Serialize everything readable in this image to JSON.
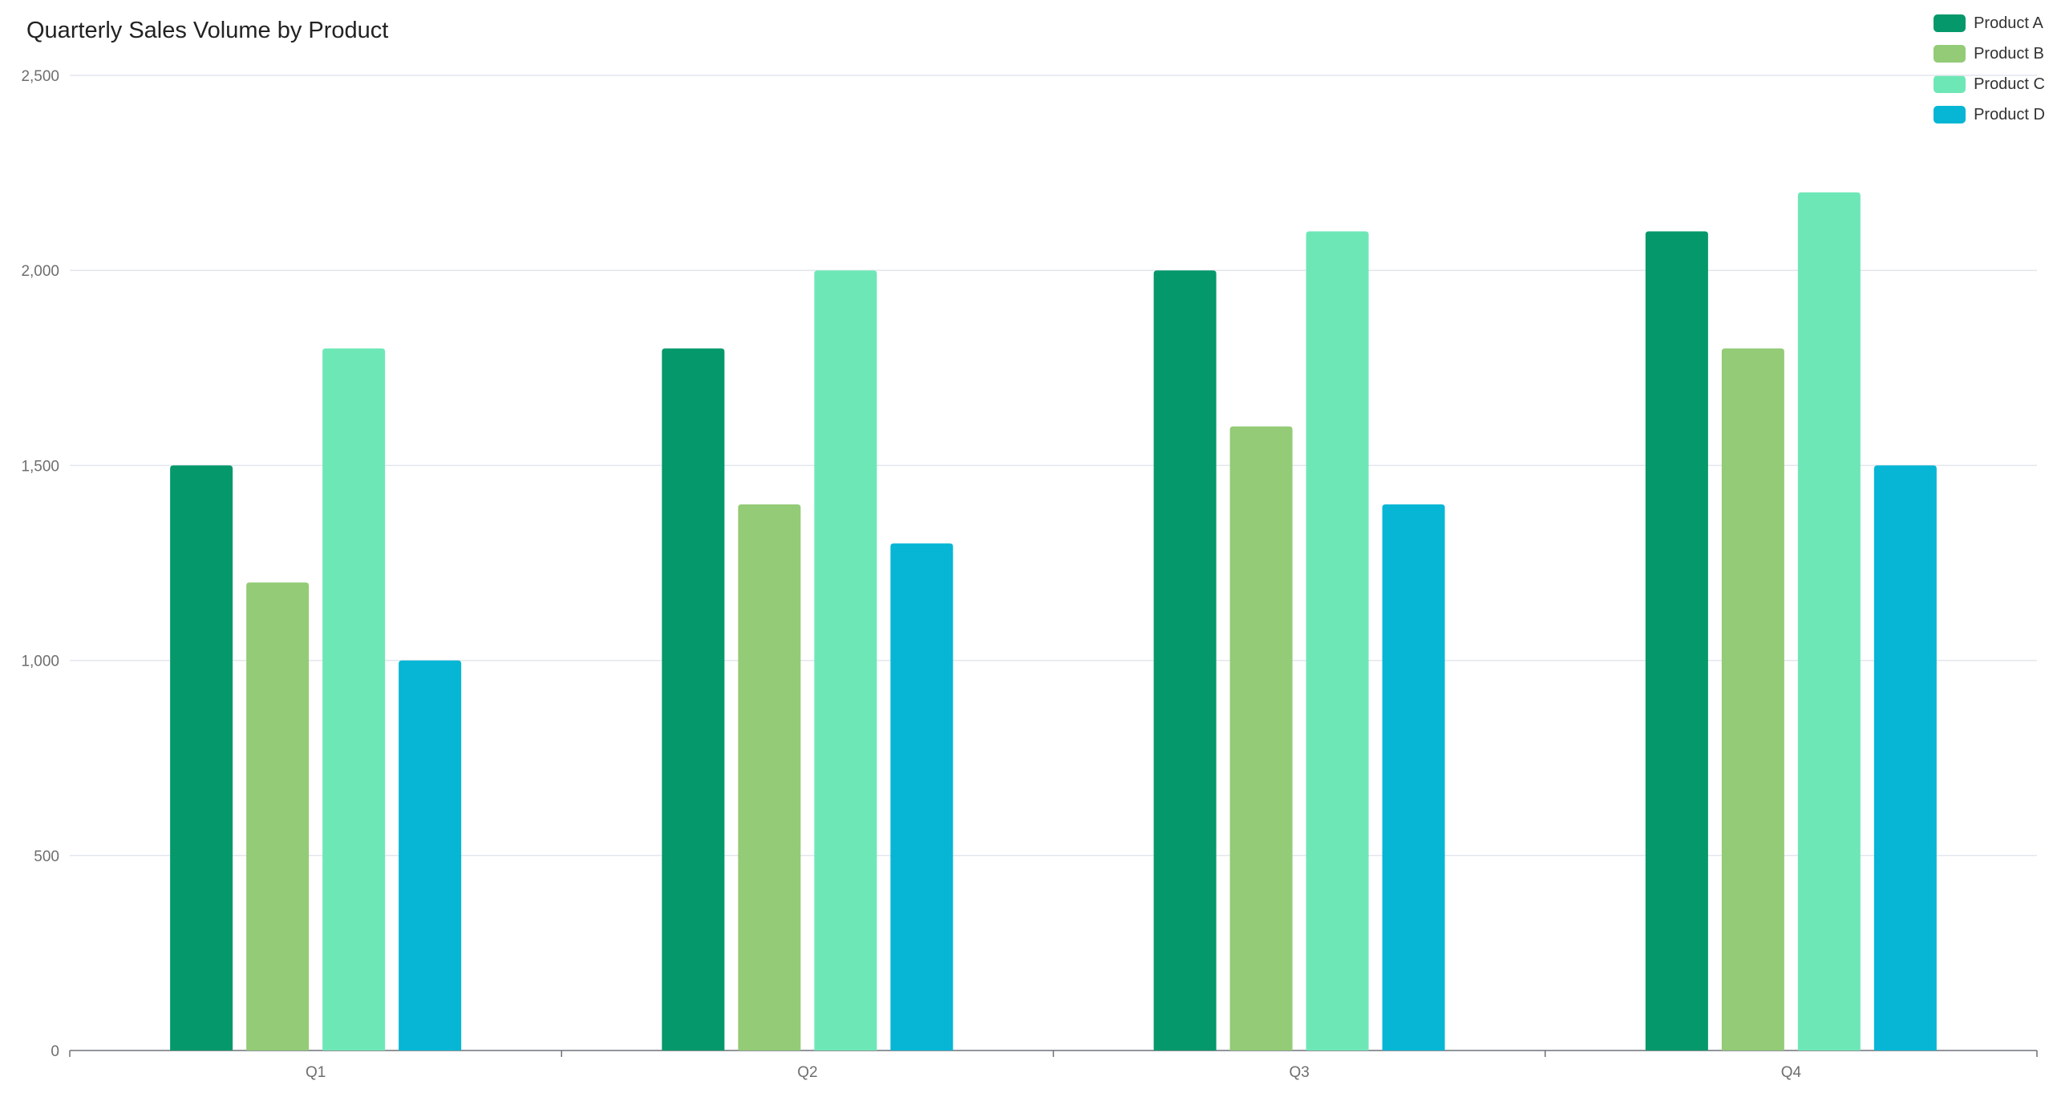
{
  "chart_data": {
    "type": "bar",
    "title": "Quarterly Sales Volume by Product",
    "xlabel": "",
    "ylabel": "",
    "categories": [
      "Q1",
      "Q2",
      "Q3",
      "Q4"
    ],
    "ylim": [
      0,
      2500
    ],
    "yticks": [
      "0",
      "500",
      "1,000",
      "1,500",
      "2,000",
      "2,500"
    ],
    "ytick_values": [
      0,
      500,
      1000,
      1500,
      2000,
      2500
    ],
    "grid": true,
    "legend_position": "top-right",
    "series": [
      {
        "name": "Product A",
        "color": "#05986a",
        "values": [
          1500,
          1800,
          2000,
          2100
        ]
      },
      {
        "name": "Product B",
        "color": "#93cb76",
        "values": [
          1200,
          1400,
          1600,
          1800
        ]
      },
      {
        "name": "Product C",
        "color": "#6ee7b7",
        "values": [
          1800,
          2000,
          2100,
          2200
        ]
      },
      {
        "name": "Product D",
        "color": "#06b6d4",
        "values": [
          1000,
          1300,
          1400,
          1500
        ]
      }
    ]
  }
}
